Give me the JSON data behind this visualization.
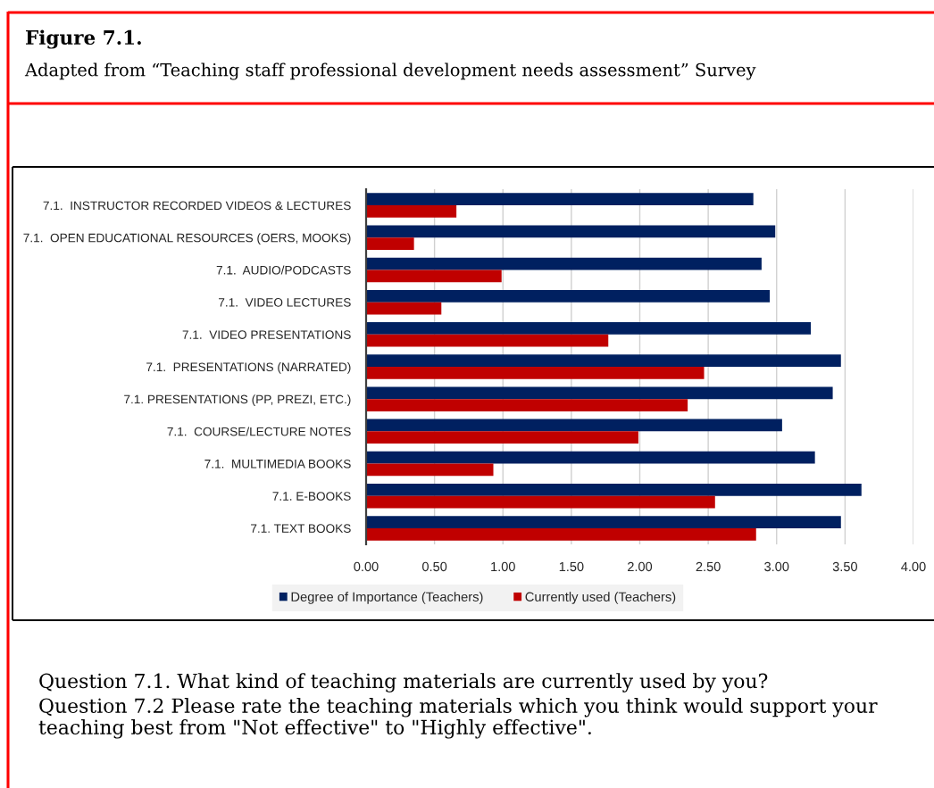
{
  "chart_data": {
    "type": "bar",
    "orientation": "horizontal",
    "title": "Figure 7.1.",
    "subtitle": "Adapted from “Teaching staff professional development needs assessment” Survey",
    "categories": [
      "7.1.  INSTRUCTOR RECORDED VIDEOS & LECTURES",
      "7.1.  OPEN EDUCATIONAL RESOURCES (OERS, MOOKS)",
      "7.1.  AUDIO/PODCASTS",
      "7.1.  VIDEO LECTURES",
      "7.1.  VIDEO PRESENTATIONS",
      "7.1.  PRESENTATIONS (NARRATED)",
      "7.1. PRESENTATIONS (PP, PREZI, ETC.)",
      "7.1.  COURSE/LECTURE NOTES",
      "7.1.  MULTIMEDIA BOOKS",
      "7.1. E-BOOKS",
      "7.1. TEXT BOOKS"
    ],
    "series": [
      {
        "name": "Degree of Importance (Teachers)",
        "color": "#002060",
        "values": [
          2.83,
          2.99,
          2.89,
          2.95,
          3.25,
          3.47,
          3.41,
          3.04,
          3.28,
          3.62,
          3.47
        ]
      },
      {
        "name": "Currently used (Teachers)",
        "color": "#c00000",
        "values": [
          0.66,
          0.35,
          0.99,
          0.55,
          1.77,
          2.47,
          2.35,
          1.99,
          0.93,
          2.55,
          2.85
        ]
      }
    ],
    "xlim": [
      0,
      4
    ],
    "xticks": [
      {
        "value": 0,
        "label": "0.00"
      },
      {
        "value": 0.5,
        "label": "0.50"
      },
      {
        "value": 1,
        "label": "1.00"
      },
      {
        "value": 1.5,
        "label": "1.50"
      },
      {
        "value": 2,
        "label": "2.00"
      },
      {
        "value": 2.5,
        "label": "2.50"
      },
      {
        "value": 3,
        "label": "3.00"
      },
      {
        "value": 3.5,
        "label": "3.50"
      },
      {
        "value": 4,
        "label": "4.00"
      }
    ],
    "grid": "x",
    "legend": "bottom",
    "annotations": [
      "Question 7.1. What kind of teaching materials are currently used by you?",
      "Question 7.2 Please rate the teaching materials which you think would support your teaching best from \"Not effective\" to \"Highly effective\"."
    ]
  }
}
